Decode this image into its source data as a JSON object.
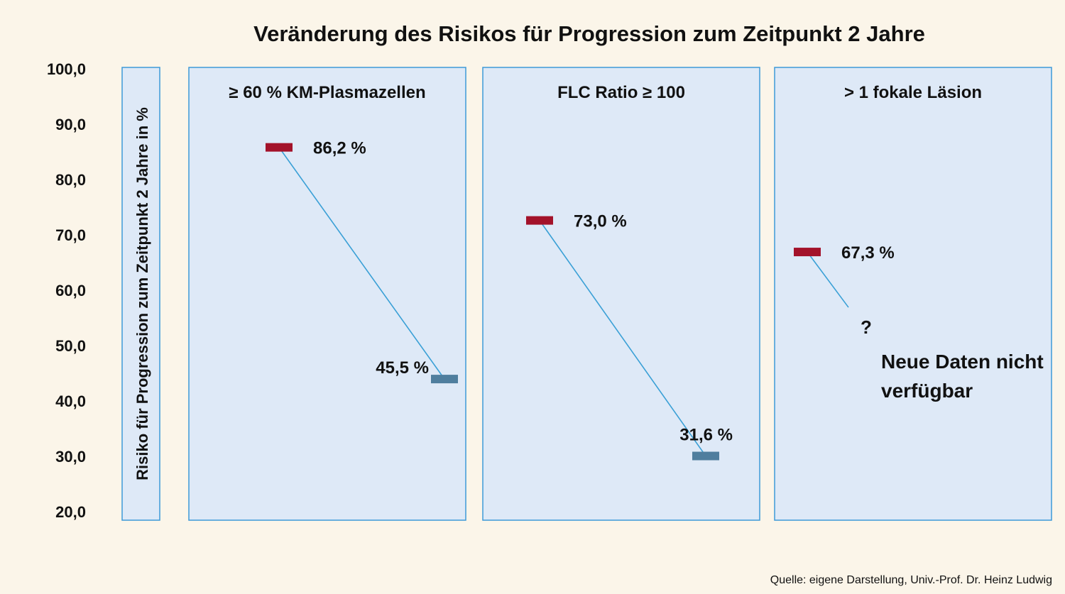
{
  "chart_data": {
    "type": "line",
    "title": "Veränderung des Risikos für Progression zum Zeitpunkt 2 Jahre",
    "ylabel": "Risiko für Progression zum Zeitpunkt 2 Jahre in %",
    "ylim": [
      20,
      100
    ],
    "y_ticks": [
      "100,0",
      "90,0",
      "80,0",
      "70,0",
      "60,0",
      "50,0",
      "40,0",
      "30,0",
      "20,0"
    ],
    "panels": [
      {
        "title": "≥ 60 % KM-Plasmazellen",
        "start": {
          "value": 86.2,
          "label": "86,2 %"
        },
        "end": {
          "value": 45.5,
          "label": "45,5 %"
        }
      },
      {
        "title": "FLC Ratio ≥ 100",
        "start": {
          "value": 73.0,
          "label": "73,0 %"
        },
        "end": {
          "value": 31.6,
          "label": "31,6 %"
        }
      },
      {
        "title": "> 1 fokale Läsion",
        "start": {
          "value": 67.3,
          "label": "67,3 %"
        },
        "end": null,
        "unknown_marker": "?",
        "note": [
          "Neue Daten nicht",
          "verfügbar"
        ]
      }
    ],
    "colors": {
      "start_marker": "#a3122a",
      "end_marker": "#4f7e9e",
      "connector": "#3aa0d6",
      "panel_fill": "#dee9f7",
      "panel_border": "#3d9ad8",
      "background": "#fbf5e9"
    },
    "grid": false
  },
  "source": "Quelle: eigene Darstellung, Univ.-Prof. Dr. Heinz Ludwig"
}
